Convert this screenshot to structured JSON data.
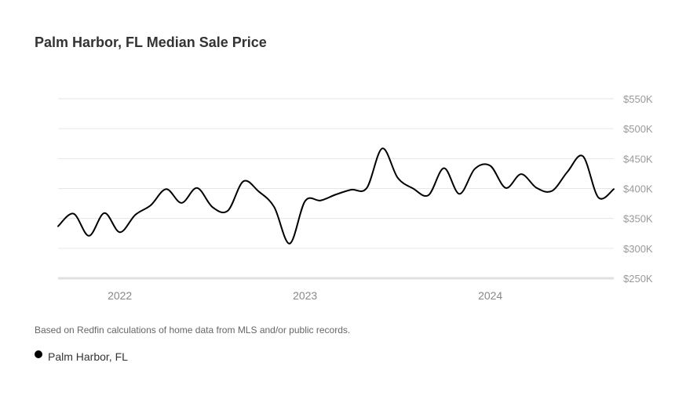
{
  "chart_data": {
    "type": "line",
    "title": "Palm Harbor, FL Median Sale Price",
    "xlabel": "",
    "ylabel": "",
    "x_tick_labels": [
      "2022",
      "2023",
      "2024"
    ],
    "y_tick_labels": [
      "$550K",
      "$500K",
      "$450K",
      "$400K",
      "$350K",
      "$300K",
      "$250K"
    ],
    "y_ticks": [
      550000,
      500000,
      450000,
      400000,
      350000,
      300000,
      250000
    ],
    "ylim": [
      250000,
      550000
    ],
    "xlim": [
      "2021-09",
      "2024-09"
    ],
    "grid": true,
    "legend_position": "bottom-left",
    "colors": {
      "series": "#000000",
      "grid": "#e6e6e6",
      "tick_label": "#999999"
    },
    "x": [
      "2021-09",
      "2021-10",
      "2021-11",
      "2021-12",
      "2022-01",
      "2022-02",
      "2022-03",
      "2022-04",
      "2022-05",
      "2022-06",
      "2022-07",
      "2022-08",
      "2022-09",
      "2022-10",
      "2022-11",
      "2022-12",
      "2023-01",
      "2023-02",
      "2023-03",
      "2023-04",
      "2023-05",
      "2023-06",
      "2023-07",
      "2023-08",
      "2023-09",
      "2023-10",
      "2023-11",
      "2023-12",
      "2024-01",
      "2024-02",
      "2024-03",
      "2024-04",
      "2024-05",
      "2024-06",
      "2024-07",
      "2024-08",
      "2024-09"
    ],
    "series": [
      {
        "name": "Palm Harbor, FL",
        "values": [
          337000,
          358000,
          321000,
          359000,
          327000,
          356000,
          372000,
          399000,
          376000,
          401000,
          369000,
          363000,
          412000,
          395000,
          369000,
          308000,
          379000,
          380000,
          390000,
          398000,
          401000,
          467000,
          418000,
          400000,
          389000,
          434000,
          391000,
          433000,
          438000,
          401000,
          424000,
          401000,
          396000,
          428000,
          454000,
          385000,
          399000
        ]
      }
    ]
  },
  "footnote": "Based on Redfin calculations of home data from MLS and/or public records.",
  "legend": {
    "label": "Palm Harbor, FL"
  }
}
